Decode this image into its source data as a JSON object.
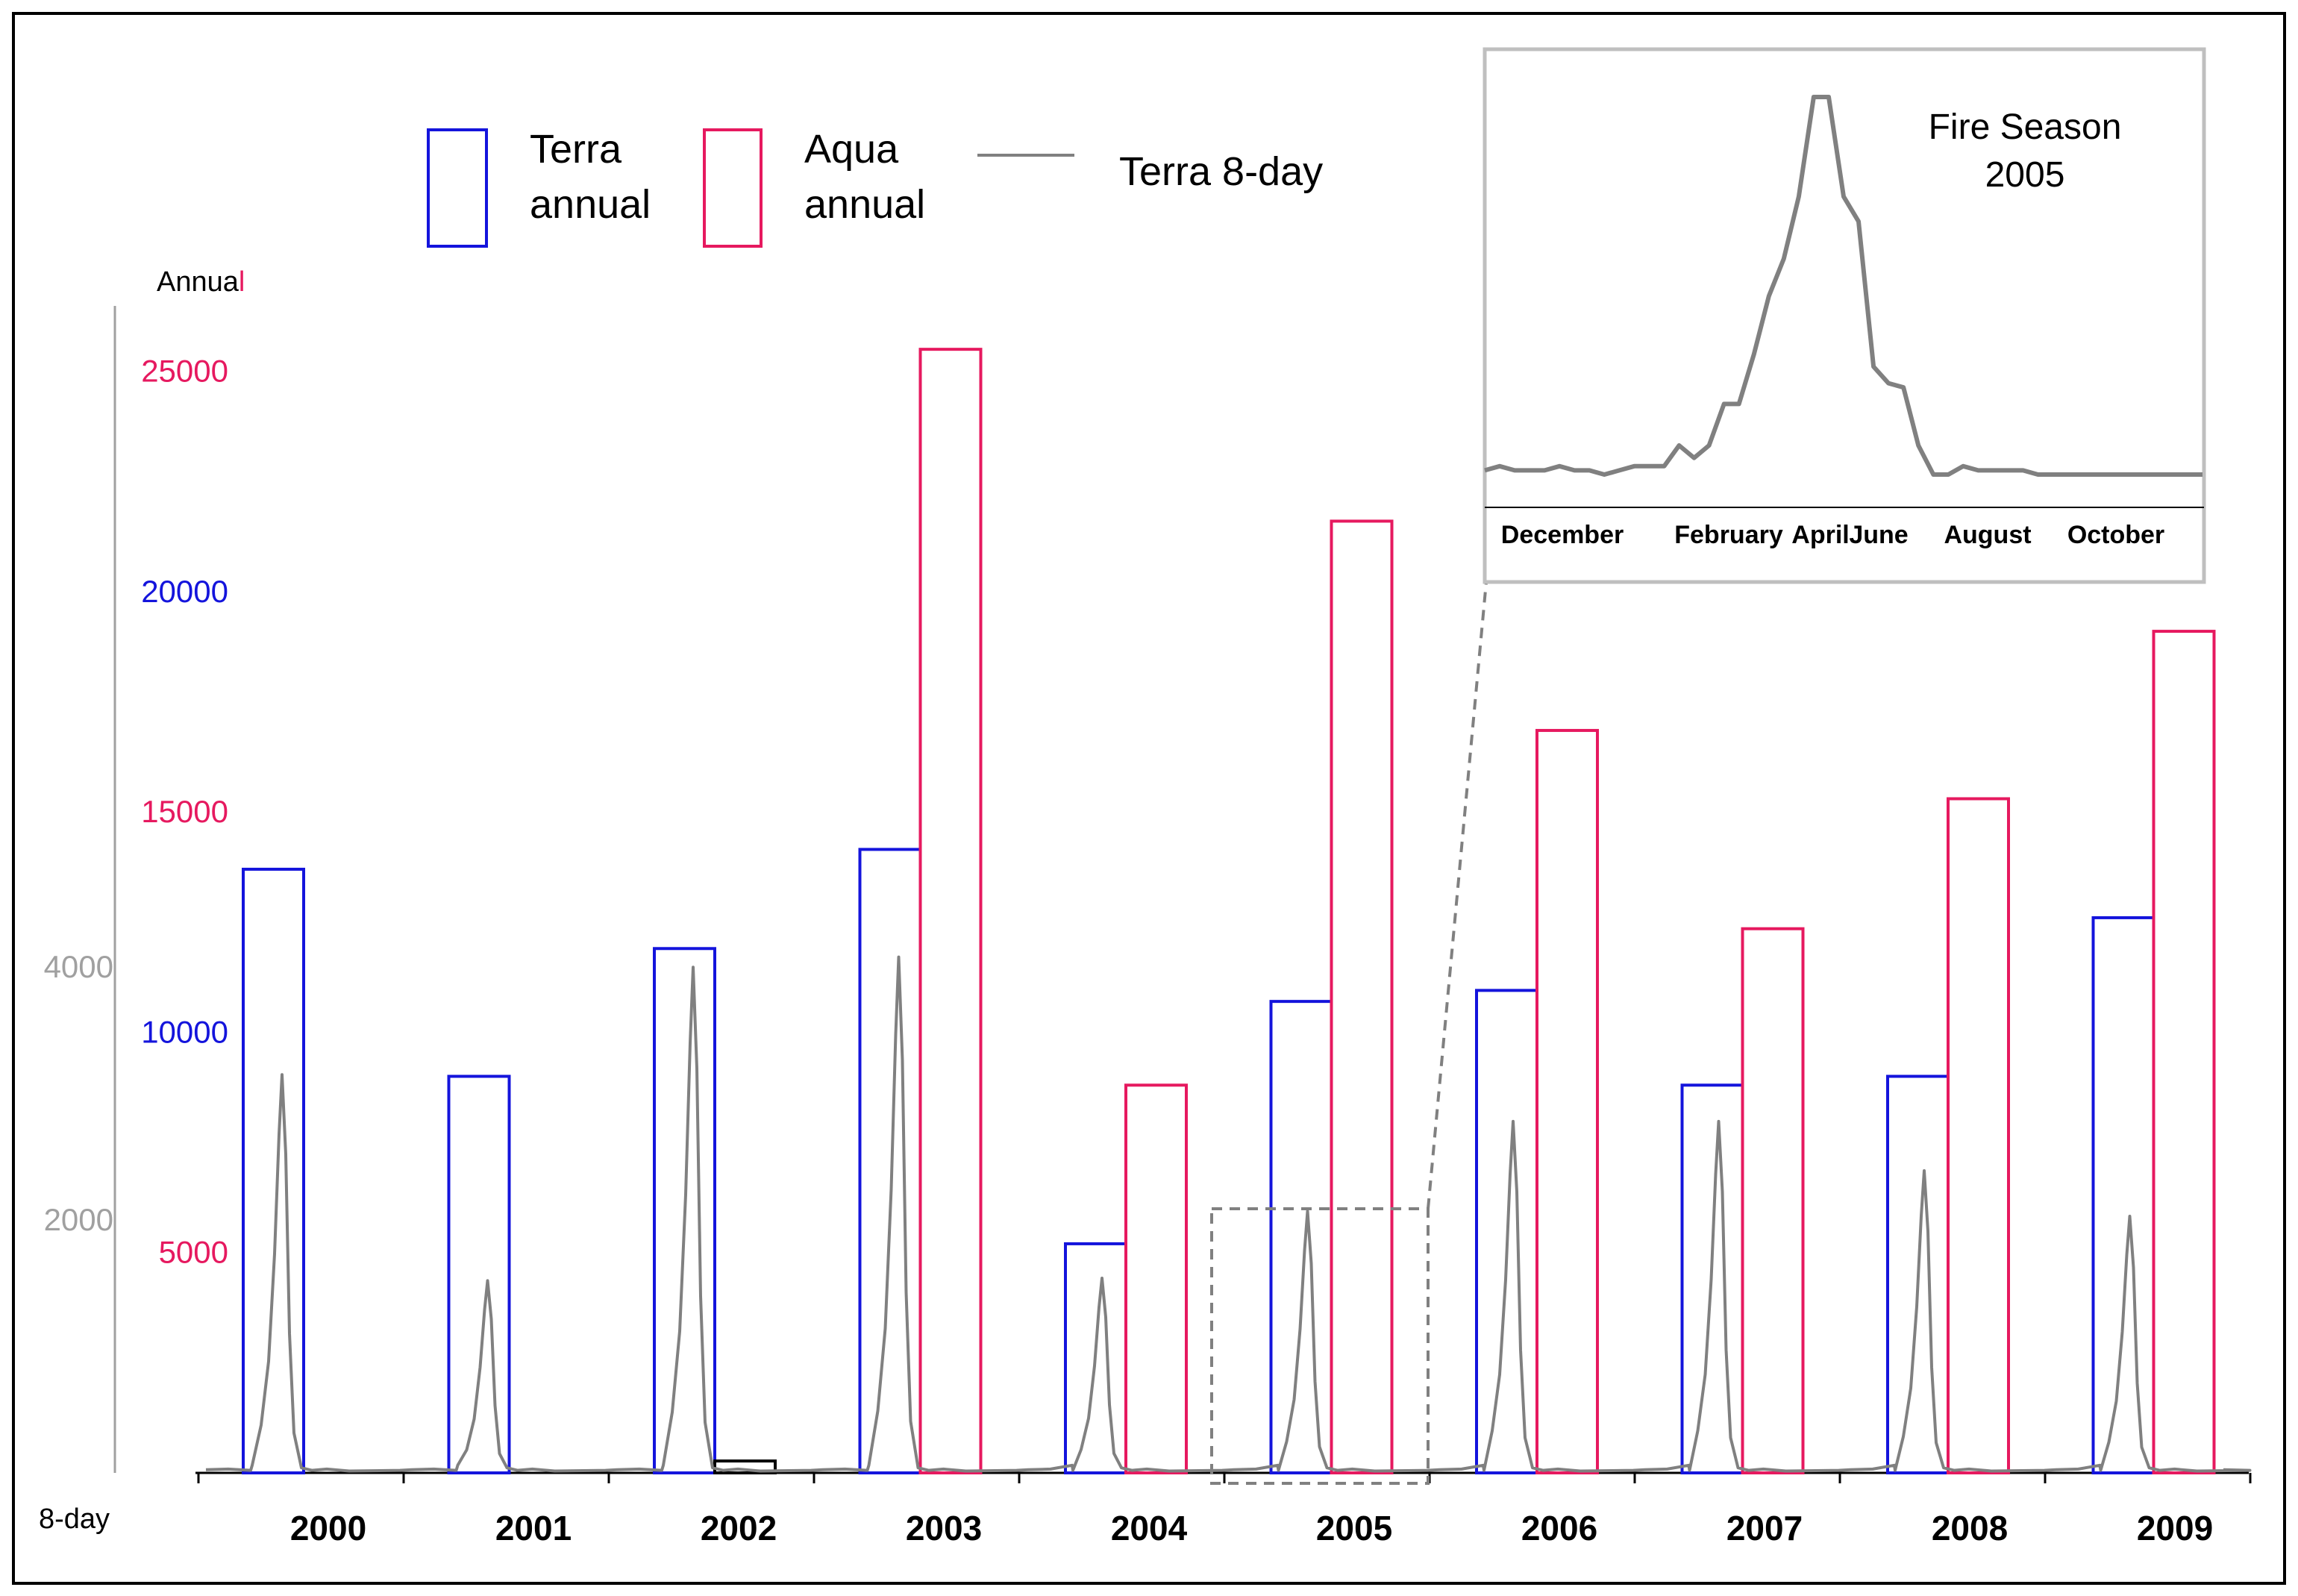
{
  "chart_data": {
    "type": "bar",
    "title": "",
    "categories": [
      "2000",
      "2001",
      "2002",
      "2003",
      "2004",
      "2005",
      "2006",
      "2007",
      "2008",
      "2009"
    ],
    "series": [
      {
        "name": "Terra annual",
        "color": "#1414dc",
        "values": [
          13700,
          9000,
          11900,
          14150,
          5200,
          10700,
          10950,
          8800,
          9000,
          12600
        ]
      },
      {
        "name": "Aqua annual",
        "color": "#e6195f",
        "values": [
          null,
          null,
          270,
          25500,
          8800,
          21600,
          16850,
          12350,
          15300,
          19100
        ]
      }
    ],
    "eight_day": {
      "name": "Terra 8-day",
      "color": "#808080",
      "peaks": [
        {
          "year": "2000",
          "value": 3150
        },
        {
          "year": "2001",
          "value": 1520
        },
        {
          "year": "2002",
          "value": 4000
        },
        {
          "year": "2003",
          "value": 4080
        },
        {
          "year": "2004",
          "value": 1540
        },
        {
          "year": "2005",
          "value": 2070
        },
        {
          "year": "2006",
          "value": 2780
        },
        {
          "year": "2007",
          "value": 2780
        },
        {
          "year": "2008",
          "value": 2390
        },
        {
          "year": "2009",
          "value": 2030
        }
      ],
      "ylim": [
        0,
        9200
      ]
    },
    "annual_axis": {
      "label_prefix": "Annua",
      "label_suffix": "l",
      "ticks": [
        {
          "label": "25000",
          "value": 25000,
          "color": "#e6195f"
        },
        {
          "label": "20000",
          "value": 20000,
          "color": "#1414dc"
        },
        {
          "label": "15000",
          "value": 15000,
          "color": "#e6195f"
        },
        {
          "label": "10000",
          "value": 10000,
          "color": "#1414dc"
        },
        {
          "label": "5000",
          "value": 5000,
          "color": "#e6195f"
        }
      ],
      "ylim": [
        0,
        26400
      ]
    },
    "eight_day_axis": {
      "label": "8-day",
      "ticks": [
        {
          "label": "4000",
          "value": 4000
        },
        {
          "label": "2000",
          "value": 2000
        }
      ]
    },
    "legend": [
      {
        "label_lines": [
          "Terra",
          "annual"
        ],
        "kind": "box",
        "color": "#1414dc"
      },
      {
        "label_lines": [
          "Aqua",
          "annual"
        ],
        "kind": "box",
        "color": "#e6195f"
      },
      {
        "label_lines": [
          "Terra 8-day"
        ],
        "kind": "line",
        "color": "#808080"
      }
    ],
    "inset": {
      "title_lines": [
        "Fire Season",
        "2005"
      ],
      "xlabels": [
        "December",
        "February",
        "April",
        "June",
        "August",
        "October"
      ],
      "series": [
        10,
        11,
        10,
        10,
        10,
        11,
        10,
        10,
        9,
        10,
        11,
        11,
        11,
        16,
        13,
        16,
        26,
        26,
        38,
        52,
        61,
        76,
        100,
        100,
        76,
        70,
        35,
        31,
        30,
        16,
        9,
        9,
        11,
        10,
        10,
        10,
        10,
        9,
        9,
        9,
        9,
        9,
        9,
        9,
        9,
        9,
        9,
        9,
        9
      ],
      "ylim": [
        0,
        100
      ]
    }
  }
}
